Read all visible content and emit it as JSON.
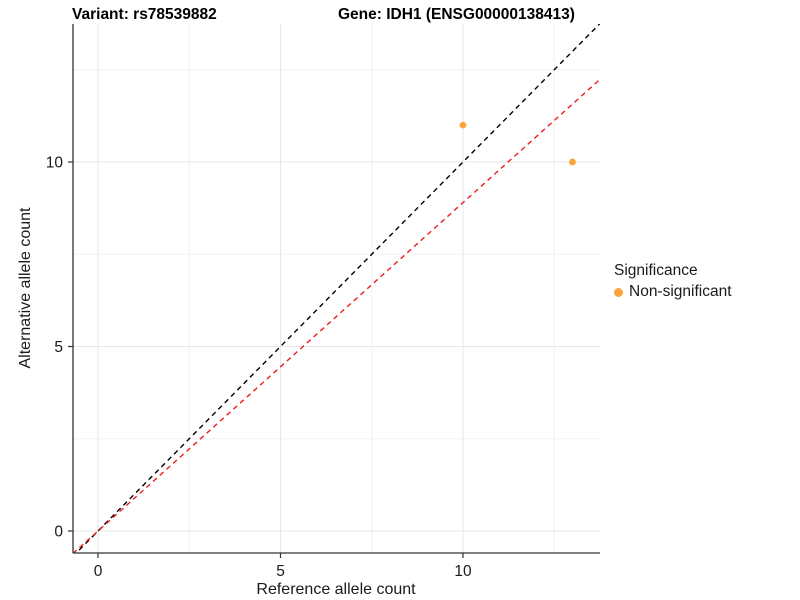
{
  "titles": {
    "left": "Variant: rs78539882",
    "right": "Gene: IDH1 (ENSG00000138413)"
  },
  "chart_data": {
    "type": "scatter",
    "xlabel": "Reference allele count",
    "ylabel": "Alternative allele count",
    "xticks": [
      0,
      5,
      10
    ],
    "yticks": [
      0,
      5,
      10
    ],
    "xminor": [
      2.5,
      7.5,
      12.5
    ],
    "yminor": [
      2.5,
      7.5,
      12.5
    ],
    "xlim": [
      -0.69,
      13.75
    ],
    "ylim": [
      -0.6,
      13.7
    ],
    "grid": "major+minor on white background",
    "points": [
      {
        "x": 10,
        "y": 11
      },
      {
        "x": 13,
        "y": 10
      }
    ],
    "point_color": "#FAA43A",
    "lines": [
      {
        "name": "identity-line",
        "slope": 1,
        "intercept": 0,
        "color": "#000000",
        "style": "dashed"
      },
      {
        "name": "fitted-line",
        "slope": 0.89,
        "intercept": 0,
        "color": "#EE1C1C",
        "style": "dashed"
      }
    ],
    "legend": {
      "position": "right",
      "title": "Significance",
      "items": [
        {
          "label": "Non-significant",
          "color": "#FAA43A"
        }
      ]
    },
    "colors": {
      "axis_line": "#333333",
      "tick_text": "#1a1a1a",
      "grid_major": "#e7e7e7",
      "grid_minor": "#f2f2f2"
    }
  }
}
